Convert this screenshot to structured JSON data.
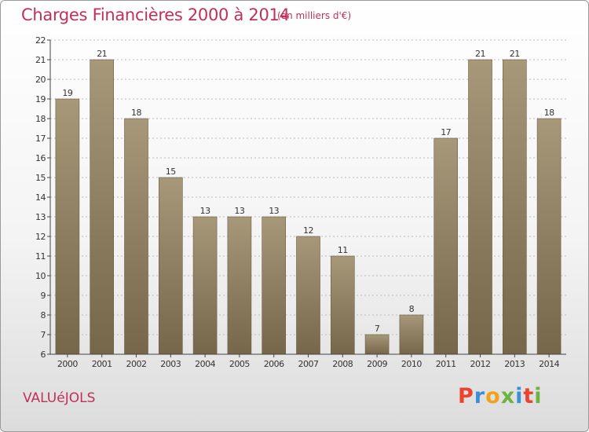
{
  "header": {
    "title": "Charges Financières 2000 à 2014",
    "unit_note": "(en milliers d'€)"
  },
  "footer": {
    "town": "VALUéJOLS",
    "logo": {
      "letters": [
        "P",
        "r",
        "o",
        "x",
        "i",
        "t",
        "i"
      ],
      "colors": [
        "#e8442f",
        "#3b8fd8",
        "#f2a11c",
        "#6cb33f",
        "#3b8fd8",
        "#e8442f",
        "#6cb33f"
      ]
    }
  },
  "colors": {
    "bar_top": "#a8987a",
    "bar_bottom": "#76664a",
    "axis": "#444444",
    "grid": "#bbbbbb",
    "text": "#333333",
    "accent": "#c0305a"
  },
  "chart_data": {
    "type": "bar",
    "categories": [
      "2000",
      "2001",
      "2002",
      "2003",
      "2004",
      "2005",
      "2006",
      "2007",
      "2008",
      "2009",
      "2010",
      "2011",
      "2012",
      "2013",
      "2014"
    ],
    "values": [
      19,
      21,
      18,
      15,
      13,
      13,
      13,
      12,
      11,
      7,
      8,
      17,
      21,
      21,
      18
    ],
    "title": "Charges Financières 2000 à 2014",
    "ylim": [
      6,
      22
    ],
    "yticks": [
      6,
      7,
      8,
      9,
      10,
      11,
      12,
      13,
      14,
      15,
      16,
      17,
      18,
      19,
      20,
      21,
      22
    ],
    "grid": true,
    "data_labels": true
  }
}
